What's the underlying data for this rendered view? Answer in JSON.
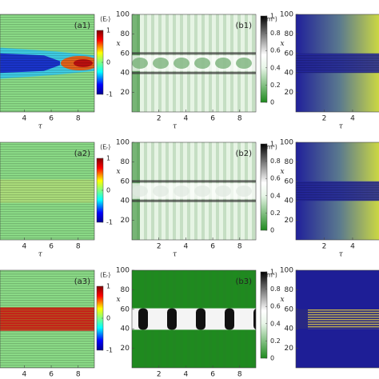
{
  "chart_data": [
    {
      "type": "heatmap",
      "panel_label": "(a1)",
      "xlabel": "τ",
      "xlim": [
        2.2,
        9.2
      ],
      "xticks": [
        4,
        6,
        8
      ],
      "colorbar": {
        "label": "⟨Eᵣ⟩",
        "lim": [
          -1,
          1
        ],
        "ticks": [
          1,
          0,
          -1
        ]
      }
    },
    {
      "type": "heatmap",
      "panel_label": "(b1)",
      "xlabel": "τ",
      "ylabel": "x",
      "xlim": [
        0,
        9.2
      ],
      "xticks": [
        2,
        4,
        6,
        8
      ],
      "ylim": [
        0,
        100
      ],
      "yticks": [
        20,
        40,
        60,
        80,
        100
      ],
      "colorbar": {
        "label": "⟨mˢ⟩",
        "lim": [
          0,
          1
        ],
        "ticks": [
          1,
          0.8,
          0.6,
          0.4,
          0.2,
          0
        ]
      }
    },
    {
      "type": "heatmap",
      "xlabel": "τ",
      "ylabel": "x",
      "xlim": [
        0,
        6.2
      ],
      "xticks": [
        2,
        4
      ],
      "ylim": [
        0,
        100
      ],
      "yticks": [
        20,
        40,
        60,
        80,
        100
      ]
    },
    {
      "type": "heatmap",
      "panel_label": "(a2)",
      "xlabel": "τ",
      "xlim": [
        2.2,
        9.2
      ],
      "xticks": [
        4,
        6,
        8
      ],
      "colorbar": {
        "label": "⟨Eᵣ⟩",
        "lim": [
          -1,
          1
        ],
        "ticks": [
          1,
          0,
          -1
        ]
      }
    },
    {
      "type": "heatmap",
      "panel_label": "(b2)",
      "xlabel": "τ",
      "ylabel": "x",
      "xlim": [
        0,
        9.2
      ],
      "xticks": [
        2,
        4,
        6,
        8
      ],
      "ylim": [
        0,
        100
      ],
      "yticks": [
        20,
        40,
        60,
        80,
        100
      ],
      "colorbar": {
        "label": "⟨mˢ⟩",
        "lim": [
          0,
          1
        ],
        "ticks": [
          1,
          0.8,
          0.6,
          0.4,
          0.2,
          0
        ]
      }
    },
    {
      "type": "heatmap",
      "xlabel": "τ",
      "ylabel": "x",
      "xlim": [
        0,
        6.2
      ],
      "xticks": [
        2,
        4
      ],
      "ylim": [
        0,
        100
      ],
      "yticks": [
        20,
        40,
        60,
        80,
        100
      ]
    },
    {
      "type": "heatmap",
      "panel_label": "(a3)",
      "xlim": [
        2.2,
        9.2
      ],
      "xticks": [
        4,
        6,
        8
      ],
      "colorbar": {
        "label": "⟨Eᵣ⟩",
        "lim": [
          -1,
          1
        ],
        "ticks": [
          1,
          0,
          -1
        ]
      }
    },
    {
      "type": "heatmap",
      "panel_label": "(b3)",
      "ylabel": "x",
      "xlim": [
        0,
        9.2
      ],
      "xticks": [
        2,
        4,
        6,
        8
      ],
      "ylim": [
        0,
        100
      ],
      "yticks": [
        20,
        40,
        60,
        80,
        100
      ],
      "colorbar": {
        "label": "⟨mˢ⟩",
        "lim": [
          0,
          1
        ],
        "ticks": [
          1,
          0.8,
          0.6,
          0.4,
          0.2,
          0
        ]
      }
    },
    {
      "type": "heatmap",
      "ylabel": "x",
      "xlim": [
        0,
        6.2
      ],
      "ylim": [
        0,
        100
      ],
      "yticks": [
        20,
        40,
        60,
        80,
        100
      ]
    }
  ]
}
